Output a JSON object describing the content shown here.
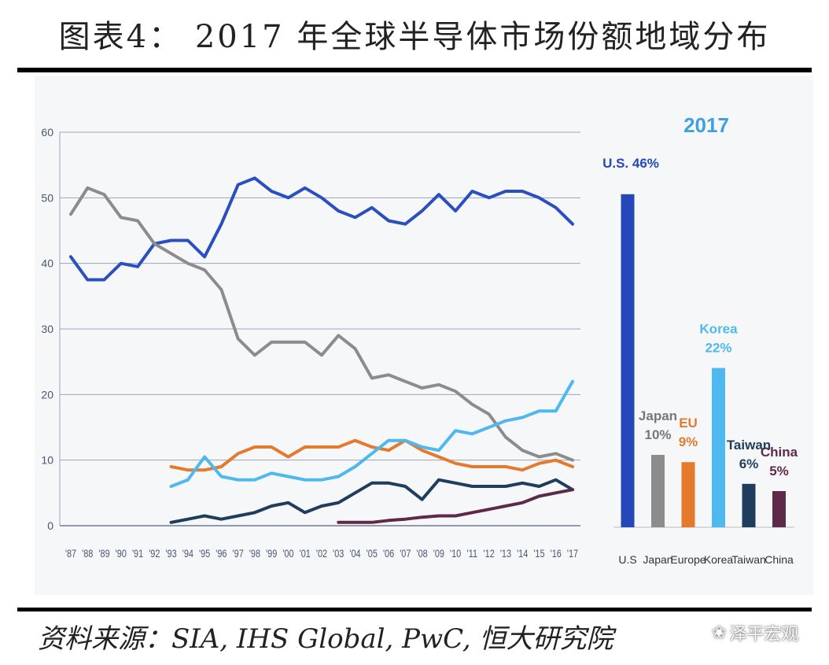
{
  "title": "图表4： 2017 年全球半导体市场份额地域分布",
  "source": "资料来源：SIA, IHS Global, PwC, 恒大研究院",
  "watermark": "泽平宏观",
  "chart_data": [
    {
      "type": "line",
      "x": [
        "'87",
        "'88",
        "'89",
        "'90",
        "'91",
        "'92",
        "'93",
        "'94",
        "'95",
        "'96",
        "'97",
        "'98",
        "'99",
        "'00",
        "'01",
        "'02",
        "'03",
        "'04",
        "'05",
        "'06",
        "'07",
        "'08",
        "'09",
        "'10",
        "'11",
        "'12",
        "'13",
        "'14",
        "'15",
        "'16",
        "'17"
      ],
      "ylim": [
        0,
        60
      ],
      "yticks": [
        0,
        10,
        20,
        30,
        40,
        50,
        60
      ],
      "grid": true,
      "series": [
        {
          "key": "us",
          "color": "#2b4fbf",
          "values": [
            41,
            37.5,
            37.5,
            40,
            39.5,
            43,
            43.5,
            43.5,
            41,
            46,
            52,
            53,
            51,
            50,
            51.5,
            50,
            48,
            47,
            48.5,
            46.5,
            46,
            48,
            50.5,
            48,
            51,
            50,
            51,
            51,
            50,
            48.5,
            46
          ]
        },
        {
          "key": "japan",
          "color": "#8c8c8c",
          "values": [
            47.5,
            51.5,
            50.5,
            47,
            46.5,
            43,
            41.5,
            40,
            39,
            36,
            28.5,
            26,
            28,
            28,
            28,
            26,
            29,
            27,
            22.5,
            23,
            22,
            21,
            21.5,
            20.5,
            18.5,
            17,
            13.5,
            11.5,
            10.5,
            11,
            10
          ]
        },
        {
          "key": "europe",
          "color": "#e57a2e",
          "values": [
            null,
            null,
            null,
            null,
            null,
            null,
            9,
            8.5,
            8.5,
            9,
            11,
            12,
            12,
            10.5,
            12,
            12,
            12,
            13,
            12,
            11.5,
            13,
            11.5,
            10.5,
            9.5,
            9,
            9,
            9,
            8.5,
            9.5,
            10,
            9
          ]
        },
        {
          "key": "korea",
          "color": "#4fb8ef",
          "values": [
            null,
            null,
            null,
            null,
            null,
            null,
            6,
            7,
            10.5,
            7.5,
            7,
            7,
            8,
            7.5,
            7,
            7,
            7.5,
            9,
            11,
            13,
            13,
            12,
            11.5,
            14.5,
            14,
            15,
            16,
            16.5,
            17.5,
            17.5,
            22
          ]
        },
        {
          "key": "taiwan",
          "color": "#1f3d5c",
          "values": [
            null,
            null,
            null,
            null,
            null,
            null,
            0.5,
            1,
            1.5,
            1,
            1.5,
            2,
            3,
            3.5,
            2,
            3,
            3.5,
            5,
            6.5,
            6.5,
            6,
            4,
            7,
            6.5,
            6,
            6,
            6,
            6.5,
            6,
            7,
            5.5
          ]
        },
        {
          "key": "china",
          "color": "#5e2a4a",
          "values": [
            null,
            null,
            null,
            null,
            null,
            null,
            null,
            null,
            null,
            null,
            null,
            null,
            null,
            null,
            null,
            null,
            0.5,
            0.5,
            0.5,
            0.8,
            1,
            1.3,
            1.5,
            1.5,
            2,
            2.5,
            3,
            3.5,
            4.5,
            5,
            5.5
          ]
        }
      ]
    },
    {
      "type": "bar",
      "title": "2017",
      "categories": [
        "U.S",
        "Japan",
        "Europe",
        "Korea",
        "Taiwan",
        "China"
      ],
      "values": [
        46,
        10,
        9,
        22,
        6,
        5
      ],
      "colors": [
        "#2547b8",
        "#8c8c8c",
        "#e57a2e",
        "#4fb8ef",
        "#1f3d5c",
        "#5e2a4a"
      ],
      "labels": [
        {
          "name": "U.S.",
          "pct": "46%"
        },
        {
          "name": "Japan",
          "pct": "10%"
        },
        {
          "name": "EU",
          "pct": "9%"
        },
        {
          "name": "Korea",
          "pct": "22%"
        },
        {
          "name": "Taiwan",
          "pct": "6%"
        },
        {
          "name": "China",
          "pct": "5%"
        }
      ],
      "label_colors": [
        "#2547b8",
        "#777777",
        "#e57a2e",
        "#4fb8ef",
        "#1f3d5c",
        "#5e2a4a"
      ],
      "ylim": [
        0,
        50
      ]
    }
  ]
}
